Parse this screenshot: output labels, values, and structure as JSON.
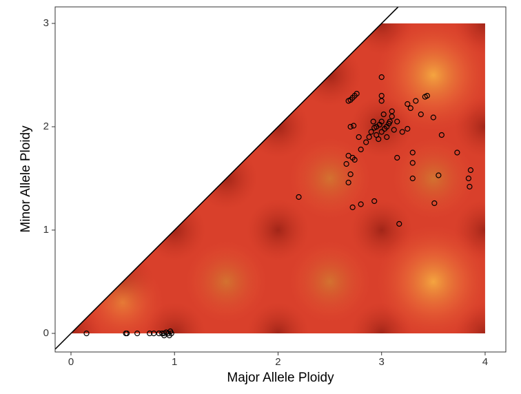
{
  "chart_data": {
    "type": "scatter",
    "x_label": "Major Allele Ploidy",
    "y_label": "Minor Allele Ploidy",
    "xlim": [
      -0.153,
      4.2
    ],
    "ylim": [
      -0.18,
      3.16
    ],
    "xticks": [
      0,
      1,
      2,
      3,
      4
    ],
    "yticks": [
      0,
      1,
      2,
      3
    ],
    "color": "#000000",
    "x": [
      0.15,
      0.53,
      0.54,
      0.64,
      0.76,
      0.8,
      0.85,
      0.88,
      0.9,
      0.92,
      0.94,
      0.96,
      0.9,
      0.95,
      0.97,
      2.2,
      2.68,
      2.7,
      2.72,
      2.68,
      2.66,
      2.74,
      2.8,
      2.72,
      2.93,
      3.17,
      3.15,
      3.3,
      3.3,
      3.3,
      3.51,
      3.55,
      3.73,
      3.85,
      3.84,
      3.86,
      3.58,
      3.5,
      3.38,
      3.25,
      3.28,
      3.33,
      3.42,
      3.44,
      3.0,
      3.0,
      3.0,
      2.68,
      2.7,
      2.72,
      2.74,
      2.76,
      2.7,
      2.73,
      2.8,
      2.78,
      2.85,
      2.88,
      2.9,
      2.95,
      3.0,
      3.05,
      3.1,
      3.15,
      3.0,
      2.95,
      3.2,
      3.25,
      3.1,
      3.05,
      2.92,
      3.02,
      2.97,
      3.08,
      3.12,
      2.98,
      3.03,
      2.93,
      3.07
    ],
    "values": [
      0,
      0,
      0,
      0,
      0,
      0,
      0,
      0,
      0,
      0.01,
      0,
      0.02,
      -0.02,
      -0.02,
      0,
      1.32,
      1.46,
      1.54,
      1.7,
      1.72,
      1.64,
      1.68,
      1.25,
      1.22,
      1.28,
      1.06,
      1.7,
      1.5,
      1.65,
      1.75,
      1.26,
      1.53,
      1.75,
      1.42,
      1.5,
      1.58,
      1.92,
      2.09,
      2.12,
      2.22,
      2.18,
      2.25,
      2.29,
      2.3,
      2.48,
      2.3,
      2.25,
      2.25,
      2.26,
      2.28,
      2.3,
      2.32,
      2.0,
      2.01,
      1.78,
      1.9,
      1.85,
      1.9,
      1.95,
      2.0,
      2.05,
      2.0,
      2.1,
      2.05,
      1.95,
      1.92,
      1.95,
      1.98,
      2.15,
      1.9,
      2.05,
      2.12,
      1.88,
      2.05,
      1.97,
      2.02,
      1.98,
      1.99,
      2.03
    ]
  }
}
